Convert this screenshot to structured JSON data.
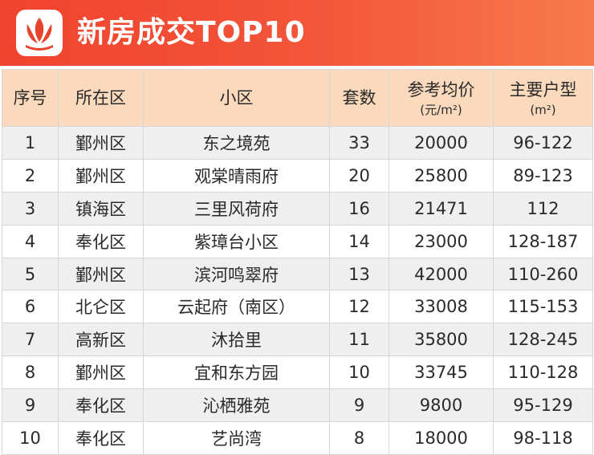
{
  "header": {
    "title": "新房成交TOP10",
    "accent_color": "#f0432e",
    "logo_icon": "lotus-logo-icon"
  },
  "table": {
    "columns": [
      {
        "label": "序号",
        "sub": ""
      },
      {
        "label": "所在区",
        "sub": ""
      },
      {
        "label": "小区",
        "sub": ""
      },
      {
        "label": "套数",
        "sub": ""
      },
      {
        "label": "参考均价",
        "sub": "(元/m²)"
      },
      {
        "label": "主要户型",
        "sub": "(m²)"
      }
    ],
    "header_color": "#fbd9bd",
    "rows": [
      [
        "1",
        "鄞州区",
        "东之境苑",
        "33",
        "20000",
        "96-122"
      ],
      [
        "2",
        "鄞州区",
        "观棠晴雨府",
        "20",
        "25800",
        "89-123"
      ],
      [
        "3",
        "镇海区",
        "三里风荷府",
        "16",
        "21471",
        "112"
      ],
      [
        "4",
        "奉化区",
        "紫璋台小区",
        "14",
        "23000",
        "128-187"
      ],
      [
        "5",
        "鄞州区",
        "滨河鸣翠府",
        "13",
        "42000",
        "110-260"
      ],
      [
        "6",
        "北仑区",
        "云起府（南区）",
        "12",
        "33008",
        "115-153"
      ],
      [
        "7",
        "高新区",
        "沐拾里",
        "11",
        "35800",
        "128-245"
      ],
      [
        "8",
        "鄞州区",
        "宜和东方园",
        "10",
        "33745",
        "110-128"
      ],
      [
        "9",
        "奉化区",
        "沁栖雅苑",
        "9",
        "9800",
        "95-129"
      ],
      [
        "10",
        "奉化区",
        "艺尚湾",
        "8",
        "18000",
        "98-118"
      ]
    ]
  }
}
